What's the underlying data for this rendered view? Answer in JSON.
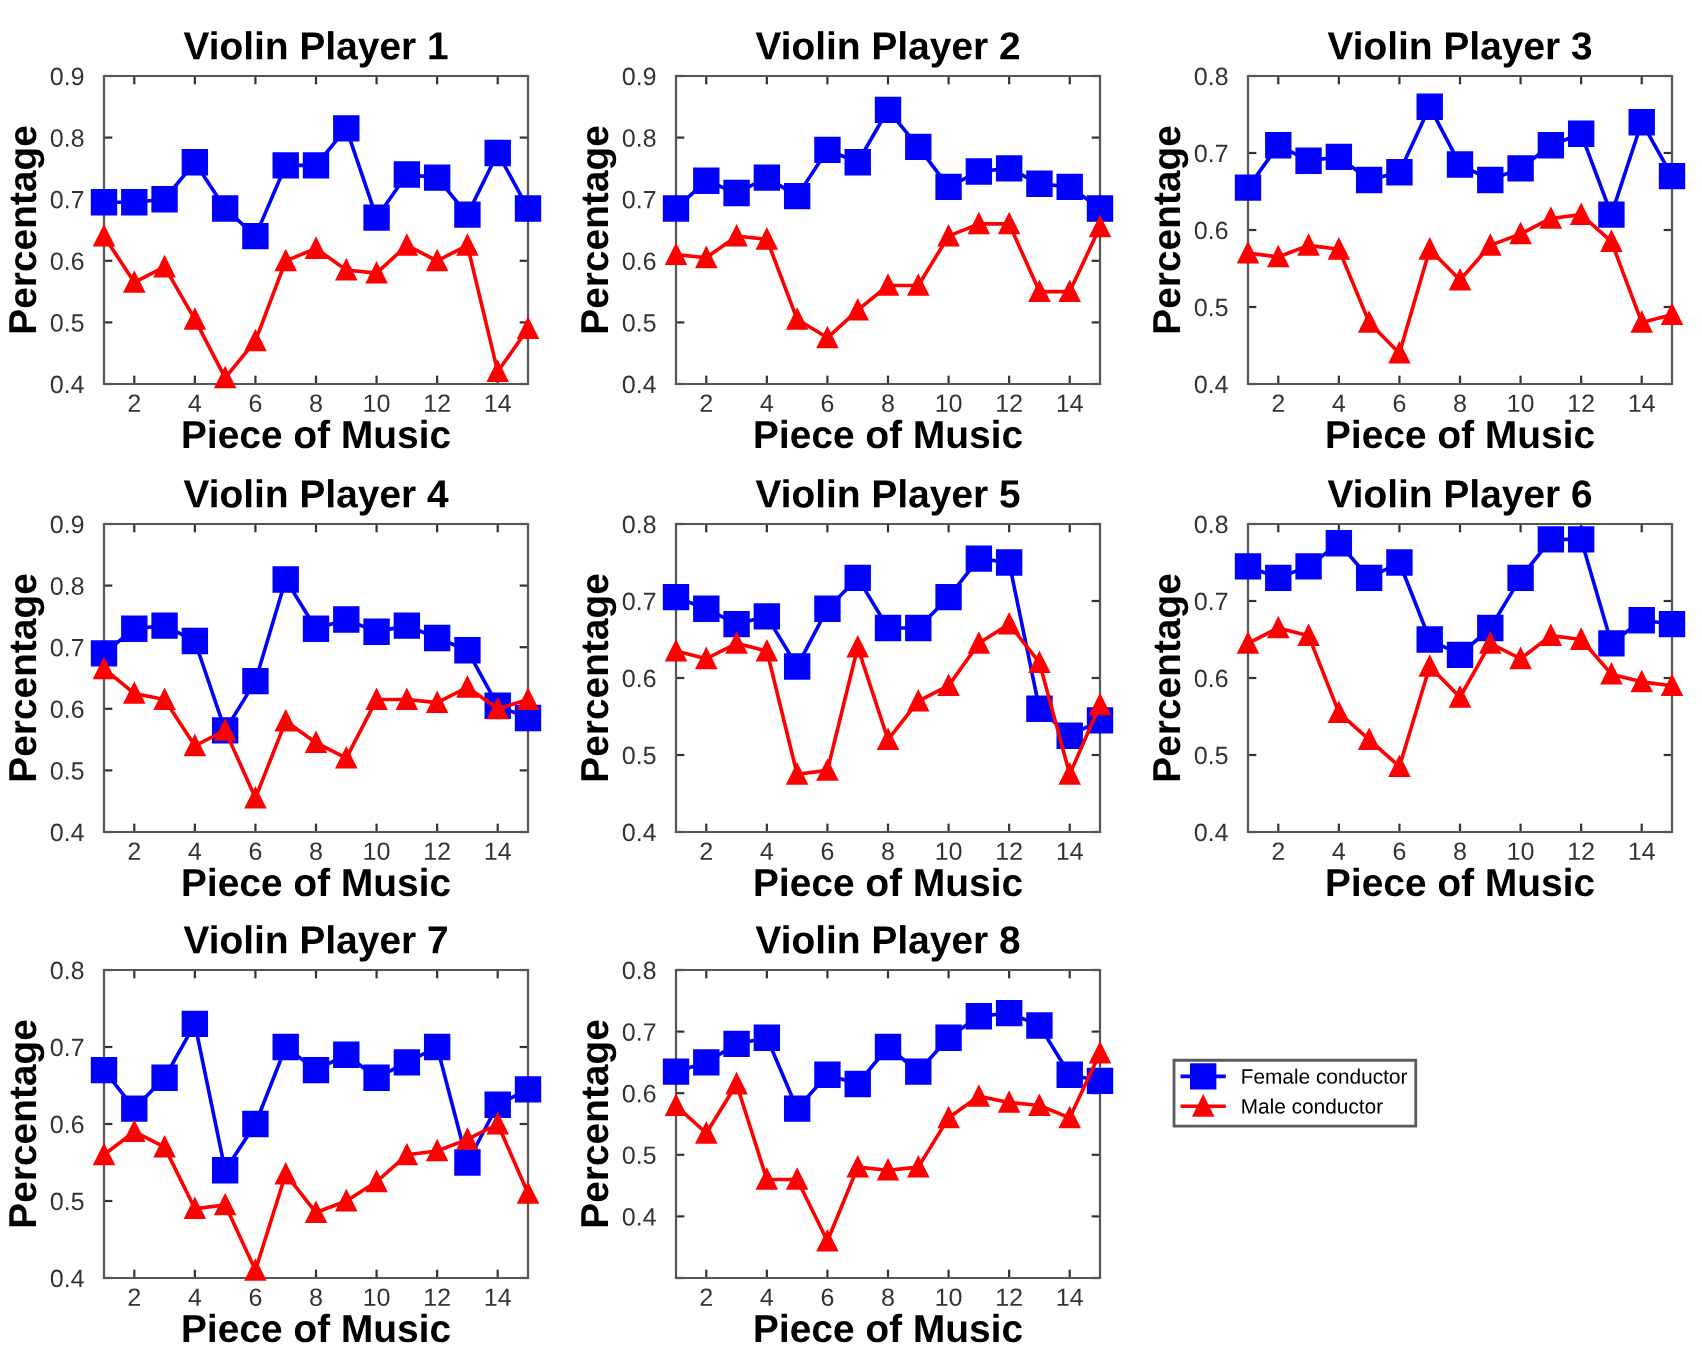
{
  "chart_data": [
    {
      "type": "line",
      "title": "Violin Player 1",
      "xlabel": "Piece of Music",
      "ylabel": "Percentage",
      "x": [
        1,
        2,
        3,
        4,
        5,
        6,
        7,
        8,
        9,
        10,
        11,
        12,
        13,
        14,
        15
      ],
      "xlim": [
        1,
        15
      ],
      "xticks": [
        2,
        4,
        6,
        8,
        10,
        12,
        14
      ],
      "ylim": [
        0.4,
        0.9
      ],
      "yticks": [
        0.4,
        0.5,
        0.6,
        0.7,
        0.8,
        0.9
      ],
      "grid": false,
      "legend": false,
      "series": [
        {
          "color": "#0000ff",
          "marker": "square",
          "values": [
            0.695,
            0.695,
            0.7,
            0.76,
            0.685,
            0.64,
            0.755,
            0.755,
            0.815,
            0.67,
            0.74,
            0.735,
            0.675,
            0.775,
            0.685
          ]
        },
        {
          "color": "#ff0000",
          "marker": "triangle",
          "values": [
            0.64,
            0.565,
            0.59,
            0.505,
            0.41,
            0.47,
            0.6,
            0.62,
            0.585,
            0.58,
            0.625,
            0.6,
            0.625,
            0.42,
            0.49
          ]
        }
      ]
    },
    {
      "type": "line",
      "title": "Violin Player 2",
      "xlabel": "Piece of Music",
      "ylabel": "Percentage",
      "x": [
        1,
        2,
        3,
        4,
        5,
        6,
        7,
        8,
        9,
        10,
        11,
        12,
        13,
        14,
        15
      ],
      "xlim": [
        1,
        15
      ],
      "xticks": [
        2,
        4,
        6,
        8,
        10,
        12,
        14
      ],
      "ylim": [
        0.4,
        0.9
      ],
      "yticks": [
        0.4,
        0.5,
        0.6,
        0.7,
        0.8,
        0.9
      ],
      "grid": false,
      "legend": false,
      "series": [
        {
          "color": "#0000ff",
          "marker": "square",
          "values": [
            0.685,
            0.73,
            0.71,
            0.735,
            0.705,
            0.78,
            0.76,
            0.845,
            0.785,
            0.72,
            0.745,
            0.75,
            0.725,
            0.72,
            0.685
          ]
        },
        {
          "color": "#ff0000",
          "marker": "triangle",
          "values": [
            0.61,
            0.605,
            0.64,
            0.635,
            0.505,
            0.475,
            0.52,
            0.56,
            0.56,
            0.64,
            0.66,
            0.66,
            0.55,
            0.55,
            0.655
          ]
        }
      ]
    },
    {
      "type": "line",
      "title": "Violin Player 3",
      "xlabel": "Piece of Music",
      "ylabel": "Percentage",
      "x": [
        1,
        2,
        3,
        4,
        5,
        6,
        7,
        8,
        9,
        10,
        11,
        12,
        13,
        14,
        15
      ],
      "xlim": [
        1,
        15
      ],
      "xticks": [
        2,
        4,
        6,
        8,
        10,
        12,
        14
      ],
      "ylim": [
        0.4,
        0.8
      ],
      "yticks": [
        0.4,
        0.5,
        0.6,
        0.7,
        0.8
      ],
      "grid": false,
      "legend": false,
      "series": [
        {
          "color": "#0000ff",
          "marker": "square",
          "values": [
            0.655,
            0.71,
            0.69,
            0.695,
            0.665,
            0.675,
            0.76,
            0.685,
            0.665,
            0.68,
            0.71,
            0.725,
            0.62,
            0.74,
            0.67
          ]
        },
        {
          "color": "#ff0000",
          "marker": "triangle",
          "values": [
            0.57,
            0.565,
            0.58,
            0.575,
            0.48,
            0.44,
            0.575,
            0.535,
            0.58,
            0.595,
            0.615,
            0.62,
            0.585,
            0.48,
            0.49
          ]
        }
      ]
    },
    {
      "type": "line",
      "title": "Violin Player 4",
      "xlabel": "Piece of Music",
      "ylabel": "Percentage",
      "x": [
        1,
        2,
        3,
        4,
        5,
        6,
        7,
        8,
        9,
        10,
        11,
        12,
        13,
        14,
        15
      ],
      "xlim": [
        1,
        15
      ],
      "xticks": [
        2,
        4,
        6,
        8,
        10,
        12,
        14
      ],
      "ylim": [
        0.4,
        0.9
      ],
      "yticks": [
        0.4,
        0.5,
        0.6,
        0.7,
        0.8,
        0.9
      ],
      "grid": false,
      "legend": false,
      "series": [
        {
          "color": "#0000ff",
          "marker": "square",
          "values": [
            0.69,
            0.73,
            0.735,
            0.71,
            0.565,
            0.645,
            0.81,
            0.73,
            0.745,
            0.725,
            0.735,
            0.715,
            0.695,
            0.605,
            0.585
          ]
        },
        {
          "color": "#ff0000",
          "marker": "triangle",
          "values": [
            0.665,
            0.625,
            0.615,
            0.54,
            0.565,
            0.455,
            0.58,
            0.545,
            0.52,
            0.615,
            0.615,
            0.61,
            0.635,
            0.6,
            0.615
          ]
        }
      ]
    },
    {
      "type": "line",
      "title": "Violin Player 5",
      "xlabel": "Piece of Music",
      "ylabel": "Percentage",
      "x": [
        1,
        2,
        3,
        4,
        5,
        6,
        7,
        8,
        9,
        10,
        11,
        12,
        13,
        14,
        15
      ],
      "xlim": [
        1,
        15
      ],
      "xticks": [
        2,
        4,
        6,
        8,
        10,
        12,
        14
      ],
      "ylim": [
        0.4,
        0.8
      ],
      "yticks": [
        0.4,
        0.5,
        0.6,
        0.7,
        0.8
      ],
      "grid": false,
      "legend": false,
      "series": [
        {
          "color": "#0000ff",
          "marker": "square",
          "values": [
            0.705,
            0.69,
            0.67,
            0.68,
            0.615,
            0.69,
            0.73,
            0.665,
            0.665,
            0.705,
            0.755,
            0.75,
            0.56,
            0.525,
            0.545
          ]
        },
        {
          "color": "#ff0000",
          "marker": "triangle",
          "values": [
            0.635,
            0.625,
            0.645,
            0.635,
            0.475,
            0.48,
            0.64,
            0.52,
            0.57,
            0.59,
            0.645,
            0.67,
            0.62,
            0.475,
            0.565
          ]
        }
      ]
    },
    {
      "type": "line",
      "title": "Violin Player 6",
      "xlabel": "Piece of Music",
      "ylabel": "Percentage",
      "x": [
        1,
        2,
        3,
        4,
        5,
        6,
        7,
        8,
        9,
        10,
        11,
        12,
        13,
        14,
        15
      ],
      "xlim": [
        1,
        15
      ],
      "xticks": [
        2,
        4,
        6,
        8,
        10,
        12,
        14
      ],
      "ylim": [
        0.4,
        0.8
      ],
      "yticks": [
        0.4,
        0.5,
        0.6,
        0.7,
        0.8
      ],
      "grid": false,
      "legend": false,
      "series": [
        {
          "color": "#0000ff",
          "marker": "square",
          "values": [
            0.745,
            0.73,
            0.745,
            0.775,
            0.73,
            0.75,
            0.65,
            0.63,
            0.665,
            0.73,
            0.78,
            0.78,
            0.645,
            0.675,
            0.67
          ]
        },
        {
          "color": "#ff0000",
          "marker": "triangle",
          "values": [
            0.645,
            0.665,
            0.655,
            0.555,
            0.52,
            0.485,
            0.615,
            0.575,
            0.645,
            0.625,
            0.655,
            0.65,
            0.605,
            0.595,
            0.59
          ]
        }
      ]
    },
    {
      "type": "line",
      "title": "Violin Player 7",
      "xlabel": "Piece of Music",
      "ylabel": "Percentage",
      "x": [
        1,
        2,
        3,
        4,
        5,
        6,
        7,
        8,
        9,
        10,
        11,
        12,
        13,
        14,
        15
      ],
      "xlim": [
        1,
        15
      ],
      "xticks": [
        2,
        4,
        6,
        8,
        10,
        12,
        14
      ],
      "ylim": [
        0.4,
        0.8
      ],
      "yticks": [
        0.4,
        0.5,
        0.6,
        0.7,
        0.8
      ],
      "grid": false,
      "legend": false,
      "series": [
        {
          "color": "#0000ff",
          "marker": "square",
          "values": [
            0.67,
            0.62,
            0.66,
            0.73,
            0.54,
            0.6,
            0.7,
            0.67,
            0.69,
            0.66,
            0.68,
            0.7,
            0.55,
            0.625,
            0.645
          ]
        },
        {
          "color": "#ff0000",
          "marker": "triangle",
          "values": [
            0.56,
            0.59,
            0.57,
            0.49,
            0.495,
            0.41,
            0.535,
            0.485,
            0.5,
            0.525,
            0.56,
            0.565,
            0.58,
            0.6,
            0.51
          ]
        }
      ]
    },
    {
      "type": "line",
      "title": "Violin Player 8",
      "xlabel": "Piece of Music",
      "ylabel": "Percentage",
      "x": [
        1,
        2,
        3,
        4,
        5,
        6,
        7,
        8,
        9,
        10,
        11,
        12,
        13,
        14,
        15
      ],
      "xlim": [
        1,
        15
      ],
      "xticks": [
        2,
        4,
        6,
        8,
        10,
        12,
        14
      ],
      "ylim": [
        0.3,
        0.8
      ],
      "yticks": [
        {
          "value": 0.3,
          "label": null
        },
        0.4,
        0.5,
        0.6,
        0.7,
        0.8
      ],
      "grid": false,
      "legend": "right",
      "series": [
        {
          "name": "Female conductor",
          "color": "#0000ff",
          "marker": "square",
          "values": [
            0.635,
            0.65,
            0.68,
            0.69,
            0.575,
            0.63,
            0.615,
            0.675,
            0.635,
            0.69,
            0.725,
            0.73,
            0.71,
            0.63,
            0.62
          ]
        },
        {
          "name": "Male conductor",
          "color": "#ff0000",
          "marker": "triangle",
          "values": [
            0.58,
            0.535,
            0.615,
            0.46,
            0.46,
            0.36,
            0.48,
            0.475,
            0.48,
            0.56,
            0.595,
            0.585,
            0.58,
            0.56,
            0.665
          ]
        }
      ]
    }
  ]
}
